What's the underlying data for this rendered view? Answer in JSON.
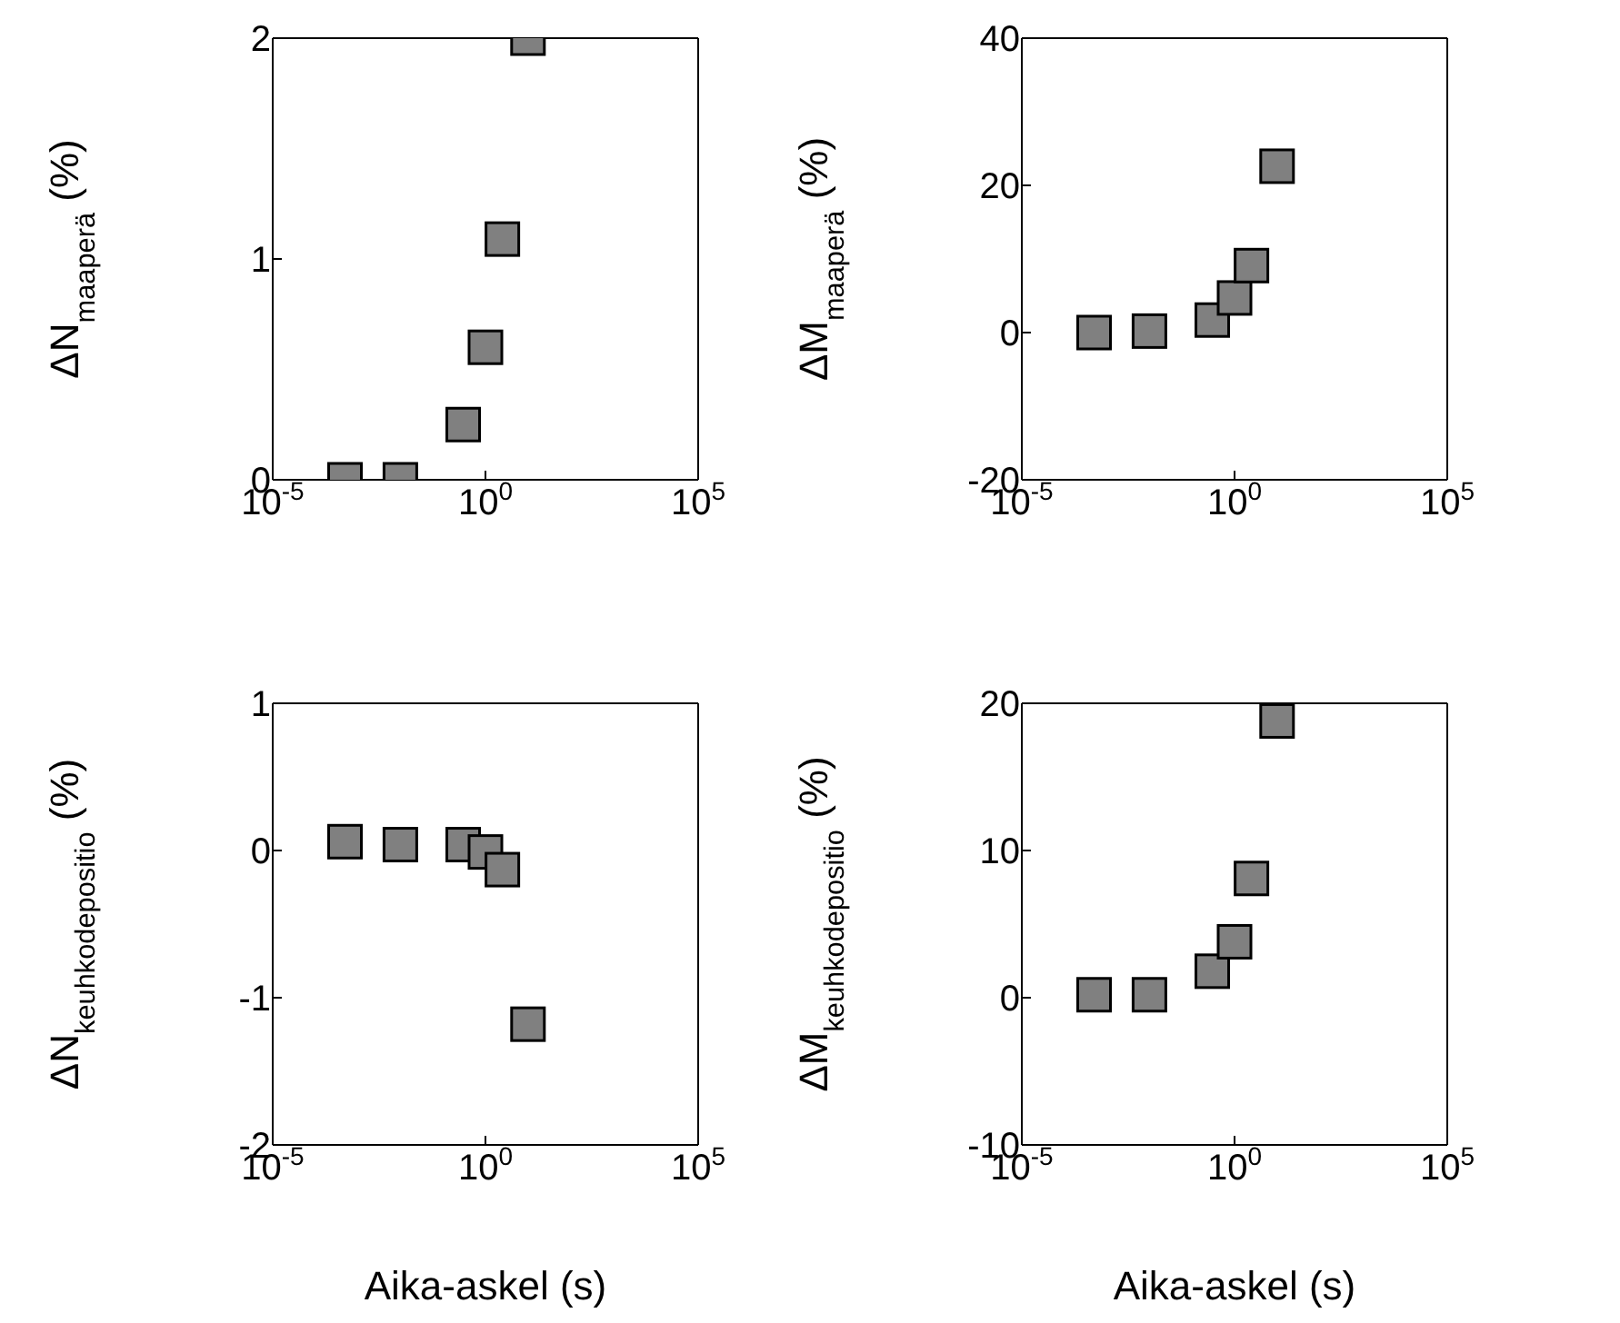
{
  "chart_data": [
    {
      "type": "scatter",
      "ylabel": "ΔN$_{maaperä}$  (%)",
      "x": [
        0.0005,
        0.01,
        0.3,
        1,
        2.5,
        10
      ],
      "values": [
        0.0,
        0.0,
        0.25,
        0.6,
        1.09,
        2.0
      ],
      "color": "#808080",
      "marker": "square",
      "log": "x",
      "grid": false,
      "xlim": [
        1e-05,
        100000
      ],
      "xticks": [
        {
          "value": 1e-05,
          "label": "10$^{-5}$"
        },
        {
          "value": 1,
          "label": "10$^{0}$"
        },
        {
          "value": 100000,
          "label": "10$^{5}$"
        }
      ],
      "ylim": [
        0,
        2
      ],
      "yticks": [
        0,
        1,
        2
      ]
    },
    {
      "type": "scatter",
      "ylabel": "ΔM$_{maaperä}$  (%)",
      "x": [
        0.0005,
        0.01,
        0.3,
        1,
        2.5,
        10
      ],
      "values": [
        0,
        0.2,
        1.7,
        4.7,
        9.1,
        22.6
      ],
      "color": "#808080",
      "marker": "square",
      "log": "x",
      "grid": false,
      "xlim": [
        1e-05,
        100000
      ],
      "xticks": [
        {
          "value": 1e-05,
          "label": "10$^{-5}$"
        },
        {
          "value": 1,
          "label": "10$^{0}$"
        },
        {
          "value": 100000,
          "label": "10$^{5}$"
        }
      ],
      "ylim": [
        -20,
        40
      ],
      "yticks": [
        -20,
        0,
        20,
        40
      ]
    },
    {
      "type": "scatter",
      "xlabel": "Aika-askel (s)",
      "ylabel": "ΔN$_{keuhkodepositio}$  (%)",
      "x": [
        0.0005,
        0.01,
        0.3,
        1,
        2.5,
        10
      ],
      "values": [
        0.06,
        0.04,
        0.04,
        -0.01,
        -0.13,
        -1.18
      ],
      "color": "#808080",
      "marker": "square",
      "log": "x",
      "grid": false,
      "xlim": [
        1e-05,
        100000
      ],
      "xticks": [
        {
          "value": 1e-05,
          "label": "10$^{-5}$"
        },
        {
          "value": 1,
          "label": "10$^{0}$"
        },
        {
          "value": 100000,
          "label": "10$^{5}$"
        }
      ],
      "ylim": [
        -2,
        1
      ],
      "yticks": [
        -2,
        -1,
        0,
        1
      ]
    },
    {
      "type": "scatter",
      "xlabel": "Aika-askel (s)",
      "ylabel": "ΔM$_{keuhkodepositio}$  (%)",
      "x": [
        0.0005,
        0.01,
        0.3,
        1,
        2.5,
        10
      ],
      "values": [
        0.2,
        0.2,
        1.8,
        3.8,
        8.1,
        18.8
      ],
      "color": "#808080",
      "marker": "square",
      "log": "x",
      "grid": false,
      "xlim": [
        1e-05,
        100000
      ],
      "xticks": [
        {
          "value": 1e-05,
          "label": "10$^{-5}$"
        },
        {
          "value": 1,
          "label": "10$^{0}$"
        },
        {
          "value": 100000,
          "label": "10$^{5}$"
        }
      ],
      "ylim": [
        -10,
        20
      ],
      "yticks": [
        -10,
        0,
        10,
        20
      ]
    }
  ]
}
